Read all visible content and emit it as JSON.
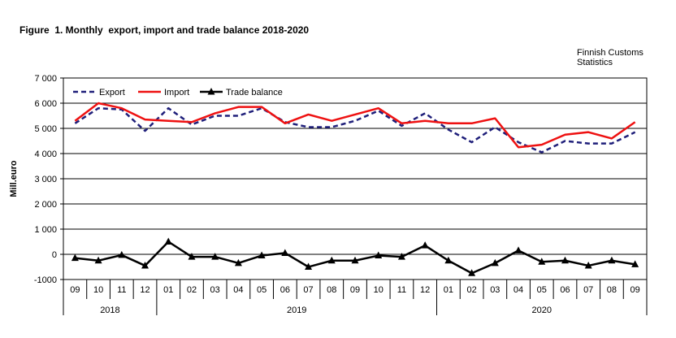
{
  "chart_data": {
    "type": "line",
    "title": "Figure  1. Monthly  export, import and trade balance 2018-2020",
    "source": [
      "Finnish Customs",
      "Statistics"
    ],
    "ylabel": "Mill.euro",
    "xlabel": "",
    "ylim": [
      -1000,
      7000
    ],
    "yticks": [
      -1000,
      0,
      1000,
      2000,
      3000,
      4000,
      5000,
      6000,
      7000
    ],
    "ytick_labels": [
      "-1000",
      "0",
      "1 000",
      "2 000",
      "3 000",
      "4 000",
      "5 000",
      "6 000",
      "7 000"
    ],
    "grid": true,
    "legend_position": "top-left",
    "categories": [
      "09",
      "10",
      "11",
      "12",
      "01",
      "02",
      "03",
      "04",
      "05",
      "06",
      "07",
      "08",
      "09",
      "10",
      "11",
      "12",
      "01",
      "02",
      "03",
      "04",
      "05",
      "06",
      "07",
      "08",
      "09"
    ],
    "years": [
      {
        "label": "2018",
        "start": 0,
        "end": 3
      },
      {
        "label": "2019",
        "start": 4,
        "end": 15
      },
      {
        "label": "2020",
        "start": 16,
        "end": 24
      }
    ],
    "series": [
      {
        "name": "Export",
        "color": "#1f1f7a",
        "style": "dashed",
        "values": [
          5200,
          5800,
          5750,
          4900,
          5800,
          5150,
          5500,
          5500,
          5800,
          5250,
          5050,
          5050,
          5300,
          5700,
          5100,
          5600,
          4950,
          4450,
          5050,
          4450,
          4050,
          4500,
          4400,
          4400,
          4850
        ]
      },
      {
        "name": "Import",
        "color": "#ee1111",
        "style": "solid",
        "values": [
          5300,
          6000,
          5800,
          5350,
          5300,
          5250,
          5600,
          5850,
          5850,
          5200,
          5550,
          5300,
          5550,
          5800,
          5200,
          5300,
          5200,
          5200,
          5400,
          4250,
          4350,
          4750,
          4850,
          4600,
          5250
        ]
      },
      {
        "name": "Trade balance",
        "color": "#000000",
        "style": "solid-marker",
        "values": [
          -150,
          -250,
          -30,
          -450,
          500,
          -100,
          -100,
          -350,
          -50,
          50,
          -500,
          -250,
          -250,
          -50,
          -100,
          350,
          -250,
          -750,
          -350,
          150,
          -300,
          -250,
          -450,
          -250,
          -400
        ]
      }
    ]
  }
}
